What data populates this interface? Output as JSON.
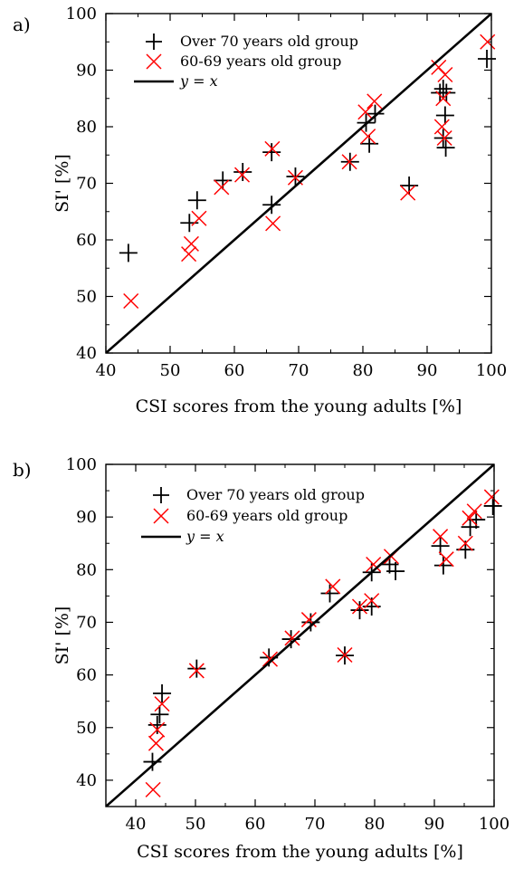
{
  "chart_data": [
    {
      "type": "scatter",
      "panel_label": "a)",
      "xlabel": "CSI scores from the young adults  [%]",
      "ylabel": "SI' [%]",
      "xlim": [
        40,
        100
      ],
      "ylim": [
        40,
        100
      ],
      "xticks": [
        40,
        50,
        60,
        70,
        80,
        90,
        100
      ],
      "yticks": [
        40,
        50,
        60,
        70,
        80,
        90,
        100
      ],
      "xtick_labels": [
        "40",
        "50",
        "60",
        "70",
        "80",
        "90",
        "100"
      ],
      "ytick_labels": [
        "40",
        "50",
        "60",
        "70",
        "80",
        "90",
        "100"
      ],
      "grid": false,
      "legend_position": "top-left",
      "series": [
        {
          "name": "Over 70 years old group",
          "marker": "plus",
          "color": "#000000",
          "points": [
            [
              43.5,
              57.7
            ],
            [
              53,
              63
            ],
            [
              54.2,
              67
            ],
            [
              58.2,
              70.5
            ],
            [
              61.3,
              72
            ],
            [
              65.8,
              75.5
            ],
            [
              65.8,
              66.2
            ],
            [
              69.5,
              71.2
            ],
            [
              78,
              73.8
            ],
            [
              80.5,
              80.7
            ],
            [
              81,
              77
            ],
            [
              81.9,
              82.3
            ],
            [
              87.2,
              69.6
            ],
            [
              92,
              86
            ],
            [
              92.5,
              86.7
            ],
            [
              92.8,
              82
            ],
            [
              93,
              86
            ],
            [
              92.5,
              78
            ],
            [
              92.9,
              76.3
            ],
            [
              99.3,
              92
            ]
          ]
        },
        {
          "name": "60-69 years old group",
          "marker": "cross",
          "color": "#ff0000",
          "points": [
            [
              43.9,
              49.2
            ],
            [
              52.9,
              57.5
            ],
            [
              53.3,
              59.3
            ],
            [
              54.5,
              63.8
            ],
            [
              58,
              69.3
            ],
            [
              61.2,
              71.5
            ],
            [
              65.9,
              76.1
            ],
            [
              66,
              62.9
            ],
            [
              69.5,
              71
            ],
            [
              77.9,
              73.8
            ],
            [
              80.4,
              82.6
            ],
            [
              80.8,
              78.3
            ],
            [
              81.8,
              84.5
            ],
            [
              87,
              68.3
            ],
            [
              91.8,
              90.5
            ],
            [
              92.8,
              89.2
            ],
            [
              92.5,
              85
            ],
            [
              92.3,
              80
            ],
            [
              92.7,
              78
            ],
            [
              99.4,
              95
            ]
          ]
        },
        {
          "name": "y = x",
          "type": "line",
          "color": "#000000",
          "points": [
            [
              40,
              40
            ],
            [
              100,
              100
            ]
          ]
        }
      ]
    },
    {
      "type": "scatter",
      "panel_label": "b)",
      "xlabel": "CSI scores from the young adults [%]",
      "ylabel": "SI' [%]",
      "xlim": [
        35,
        100
      ],
      "ylim": [
        35,
        100
      ],
      "xticks": [
        40,
        50,
        60,
        70,
        80,
        90,
        100
      ],
      "yticks": [
        40,
        50,
        60,
        70,
        80,
        90,
        100
      ],
      "xtick_labels": [
        "40",
        "50",
        "60",
        "70",
        "80",
        "90",
        "100"
      ],
      "ytick_labels": [
        "40",
        "50",
        "60",
        "70",
        "80",
        "90",
        "100"
      ],
      "grid": false,
      "legend_position": "top-left",
      "series": [
        {
          "name": "Over 70 years old group",
          "marker": "plus",
          "color": "#000000",
          "points": [
            [
              42.8,
              43.5
            ],
            [
              43.6,
              50.5
            ],
            [
              44,
              52.5
            ],
            [
              44.4,
              56.5
            ],
            [
              50.2,
              61.2
            ],
            [
              62.3,
              63.3
            ],
            [
              66,
              66.8
            ],
            [
              69.3,
              70
            ],
            [
              72.5,
              75.5
            ],
            [
              75,
              63.7
            ],
            [
              77.5,
              72.3
            ],
            [
              79.5,
              73
            ],
            [
              79.5,
              79.5
            ],
            [
              82.5,
              81
            ],
            [
              83.5,
              79.7
            ],
            [
              91,
              84.5
            ],
            [
              91.5,
              80.8
            ],
            [
              95.2,
              83.8
            ],
            [
              96,
              88.1
            ],
            [
              97,
              89.5
            ],
            [
              99.8,
              92.1
            ]
          ]
        },
        {
          "name": "60-69 years old group",
          "marker": "cross",
          "color": "#ff0000",
          "points": [
            [
              42.9,
              38.2
            ],
            [
              43.4,
              47
            ],
            [
              43.6,
              49.6
            ],
            [
              44.4,
              54.5
            ],
            [
              50.2,
              60.8
            ],
            [
              62.5,
              63
            ],
            [
              66.2,
              67
            ],
            [
              69,
              70.5
            ],
            [
              73,
              76.8
            ],
            [
              75,
              63.8
            ],
            [
              77.5,
              73
            ],
            [
              79.5,
              74.1
            ],
            [
              79.8,
              81
            ],
            [
              82.8,
              82.5
            ],
            [
              91,
              86.3
            ],
            [
              92,
              82
            ],
            [
              95.2,
              85
            ],
            [
              95.9,
              89.8
            ],
            [
              96.7,
              91.1
            ],
            [
              99.6,
              93.8
            ]
          ]
        },
        {
          "name": "y  = x",
          "type": "line",
          "color": "#000000",
          "points": [
            [
              35,
              35
            ],
            [
              100,
              100
            ]
          ]
        }
      ]
    }
  ]
}
